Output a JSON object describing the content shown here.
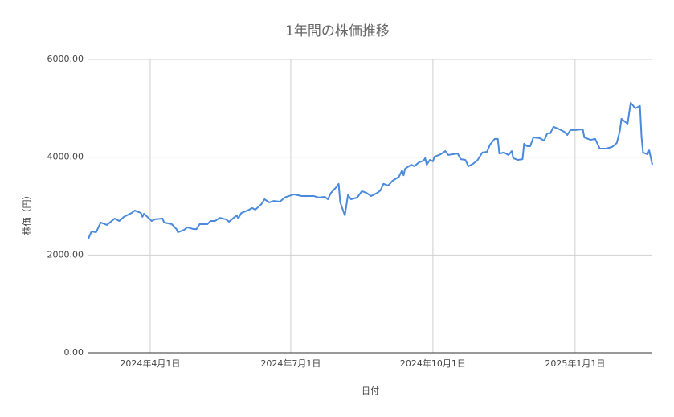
{
  "chart_data": {
    "type": "line",
    "title": "1年間の株価推移",
    "x_label": "日付",
    "y_label": "株価（円）",
    "x": [
      "2024-02-21",
      "2024-02-23",
      "2024-02-26",
      "2024-02-29",
      "2024-03-04",
      "2024-03-09",
      "2024-03-12",
      "2024-03-15",
      "2024-03-20",
      "2024-03-22",
      "2024-03-26",
      "2024-03-27",
      "2024-03-28",
      "2024-04-02",
      "2024-04-04",
      "2024-04-09",
      "2024-04-10",
      "2024-04-15",
      "2024-04-18",
      "2024-04-19",
      "2024-04-23",
      "2024-04-25",
      "2024-04-29",
      "2024-05-01",
      "2024-05-03",
      "2024-05-08",
      "2024-05-10",
      "2024-05-13",
      "2024-05-16",
      "2024-05-20",
      "2024-05-22",
      "2024-05-27",
      "2024-05-28",
      "2024-05-30",
      "2024-06-03",
      "2024-06-06",
      "2024-06-08",
      "2024-06-12",
      "2024-06-14",
      "2024-06-17",
      "2024-06-20",
      "2024-06-24",
      "2024-06-27",
      "2024-07-03",
      "2024-07-08",
      "2024-07-12",
      "2024-07-16",
      "2024-07-19",
      "2024-07-23",
      "2024-07-25",
      "2024-07-27",
      "2024-07-31",
      "2024-08-01",
      "2024-08-02",
      "2024-08-05",
      "2024-08-07",
      "2024-08-09",
      "2024-08-13",
      "2024-08-16",
      "2024-08-19",
      "2024-08-22",
      "2024-08-26",
      "2024-08-28",
      "2024-08-30",
      "2024-09-02",
      "2024-09-05",
      "2024-09-09",
      "2024-09-11",
      "2024-09-12",
      "2024-09-13",
      "2024-09-17",
      "2024-09-19",
      "2024-09-22",
      "2024-09-25",
      "2024-09-26",
      "2024-09-27",
      "2024-09-29",
      "2024-10-01",
      "2024-10-02",
      "2024-10-06",
      "2024-10-09",
      "2024-10-11",
      "2024-10-14",
      "2024-10-17",
      "2024-10-19",
      "2024-10-22",
      "2024-10-24",
      "2024-10-27",
      "2024-10-30",
      "2024-11-02",
      "2024-11-05",
      "2024-11-07",
      "2024-11-10",
      "2024-11-12",
      "2024-11-13",
      "2024-11-16",
      "2024-11-19",
      "2024-11-21",
      "2024-11-22",
      "2024-11-25",
      "2024-11-28",
      "2024-11-29",
      "2024-12-01",
      "2024-12-03",
      "2024-12-05",
      "2024-12-09",
      "2024-12-12",
      "2024-12-14",
      "2024-12-16",
      "2024-12-18",
      "2024-12-21",
      "2024-12-25",
      "2024-12-27",
      "2024-12-29",
      "2025-01-01",
      "2025-01-06",
      "2025-01-07",
      "2025-01-11",
      "2025-01-14",
      "2025-01-17",
      "2025-01-21",
      "2025-01-25",
      "2025-01-28",
      "2025-01-30",
      "2025-01-31",
      "2025-02-04",
      "2025-02-06",
      "2025-02-09",
      "2025-02-12",
      "2025-02-13",
      "2025-02-14",
      "2025-02-17",
      "2025-02-18",
      "2025-02-20"
    ],
    "series": [
      {
        "name": "株価",
        "color": "#4a89dc",
        "values": [
          2335,
          2480,
          2465,
          2665,
          2615,
          2745,
          2695,
          2780,
          2860,
          2910,
          2860,
          2780,
          2845,
          2695,
          2730,
          2745,
          2665,
          2630,
          2530,
          2465,
          2515,
          2565,
          2530,
          2530,
          2630,
          2630,
          2695,
          2695,
          2760,
          2730,
          2680,
          2810,
          2745,
          2860,
          2910,
          2960,
          2925,
          3040,
          3140,
          3075,
          3105,
          3090,
          3175,
          3240,
          3205,
          3205,
          3205,
          3175,
          3190,
          3140,
          3270,
          3405,
          3455,
          3075,
          2810,
          3225,
          3140,
          3175,
          3305,
          3270,
          3205,
          3270,
          3320,
          3455,
          3420,
          3520,
          3600,
          3730,
          3630,
          3765,
          3845,
          3815,
          3895,
          3930,
          3980,
          3845,
          3945,
          3915,
          4010,
          4060,
          4125,
          4045,
          4060,
          4075,
          3960,
          3945,
          3815,
          3865,
          3945,
          4095,
          4110,
          4260,
          4375,
          4375,
          4075,
          4095,
          4045,
          4125,
          3980,
          3945,
          3960,
          4275,
          4225,
          4225,
          4405,
          4390,
          4340,
          4490,
          4490,
          4620,
          4585,
          4520,
          4455,
          4555,
          4555,
          4570,
          4405,
          4355,
          4375,
          4175,
          4175,
          4210,
          4290,
          4540,
          4785,
          4685,
          5115,
          5000,
          5050,
          4420,
          4095,
          4060,
          4140,
          3845
        ]
      }
    ],
    "xlim": [
      "2024-02-21",
      "2025-02-20"
    ],
    "xticks": [
      {
        "value": "2024-04-01",
        "label": "2024年4月1日"
      },
      {
        "value": "2024-07-01",
        "label": "2024年7月1日"
      },
      {
        "value": "2024-10-01",
        "label": "2024年10月1日"
      },
      {
        "value": "2025-01-01",
        "label": "2025年1月1日"
      }
    ],
    "ylim": [
      0,
      6000
    ],
    "yticks": [
      {
        "value": 0,
        "label": "0.00"
      },
      {
        "value": 2000,
        "label": "2000.00"
      },
      {
        "value": 4000,
        "label": "4000.00"
      },
      {
        "value": 6000,
        "label": "6000.00"
      }
    ],
    "grid": true
  }
}
